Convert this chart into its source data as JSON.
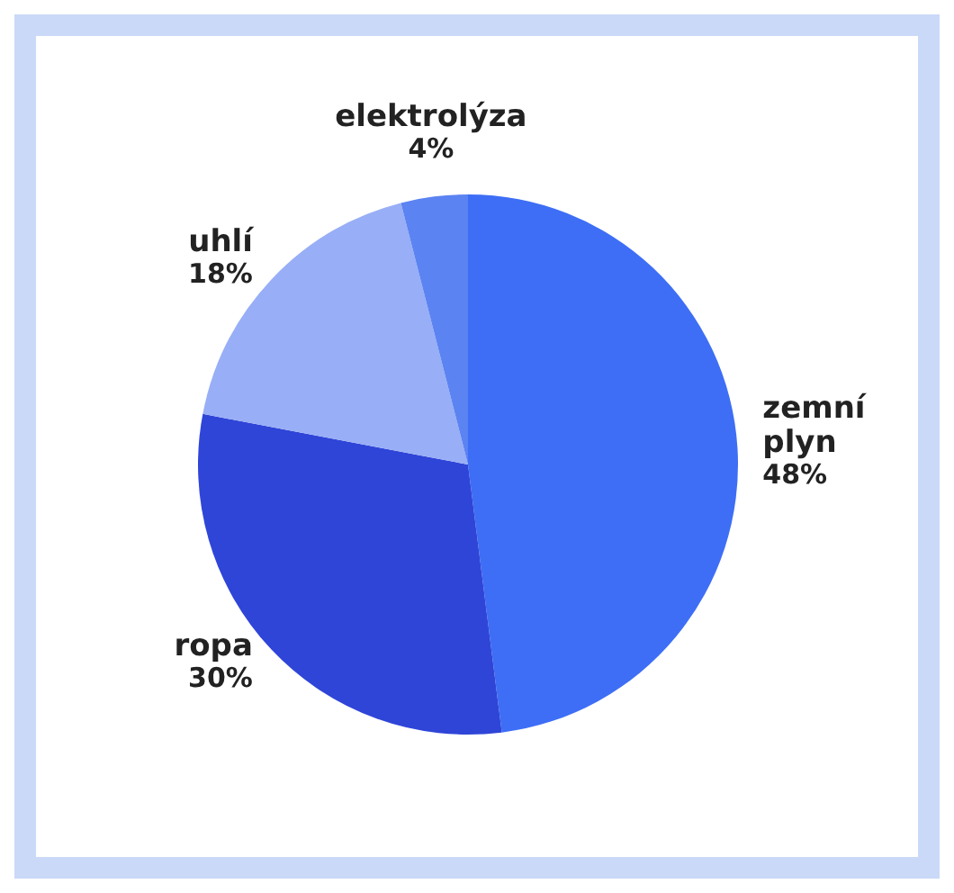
{
  "chart_data": {
    "type": "pie",
    "categories": [
      "zemní plyn",
      "ropa",
      "uhlí",
      "elektrolýza"
    ],
    "values": [
      48,
      30,
      18,
      4
    ],
    "value_labels": [
      "48%",
      "30%",
      "18%",
      "4%"
    ],
    "colors": [
      "#3d6ef5",
      "#2f45d8",
      "#98aef6",
      "#5b83f2"
    ],
    "legend": false
  }
}
